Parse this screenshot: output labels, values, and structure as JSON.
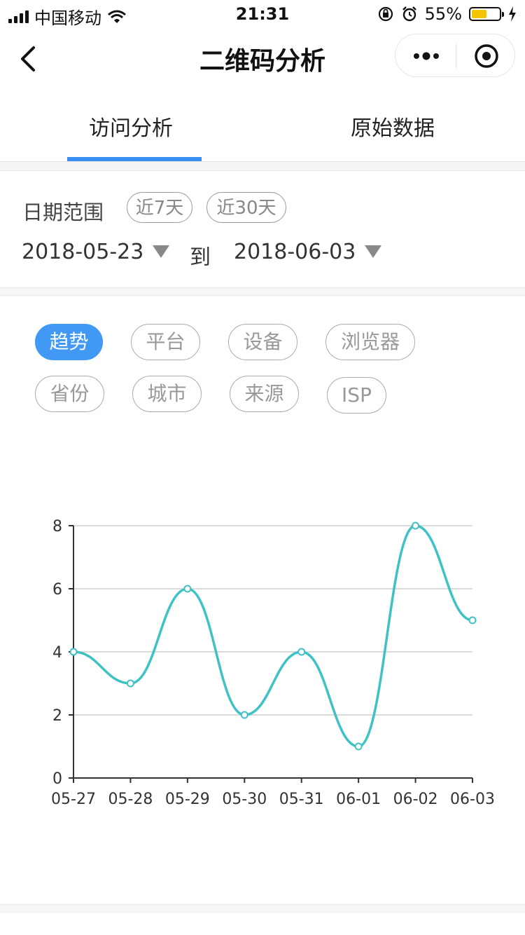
{
  "status": {
    "carrier": "中国移动",
    "time": "21:31",
    "battery": "55%",
    "battery_level": 0.55
  },
  "nav": {
    "title": "二维码分析"
  },
  "tabs": [
    {
      "label": "访问分析",
      "active": true
    },
    {
      "label": "原始数据",
      "active": false
    }
  ],
  "date": {
    "label": "日期范围",
    "chips": [
      "近7天",
      "近30天"
    ],
    "start": "2018-05-23",
    "to_label": "到",
    "end": "2018-06-03"
  },
  "filters": [
    {
      "label": "趋势",
      "active": true
    },
    {
      "label": "平台",
      "active": false
    },
    {
      "label": "设备",
      "active": false
    },
    {
      "label": "浏览器",
      "active": false
    },
    {
      "label": "省份",
      "active": false
    },
    {
      "label": "城市",
      "active": false
    },
    {
      "label": "来源",
      "active": false
    },
    {
      "label": "ISP",
      "active": false
    }
  ],
  "colors": {
    "accent": "#4199f5",
    "line": "#3fc2c5",
    "tab_underline": "#3a8ff3"
  },
  "chart_data": {
    "type": "line",
    "categories": [
      "05-27",
      "05-28",
      "05-29",
      "05-30",
      "05-31",
      "06-01",
      "06-02",
      "06-03"
    ],
    "values": [
      4,
      3,
      6,
      2,
      4,
      1,
      8,
      5
    ],
    "ylim": [
      0,
      8
    ],
    "yticks": [
      0,
      2,
      4,
      6,
      8
    ],
    "smooth": true,
    "grid": true
  }
}
